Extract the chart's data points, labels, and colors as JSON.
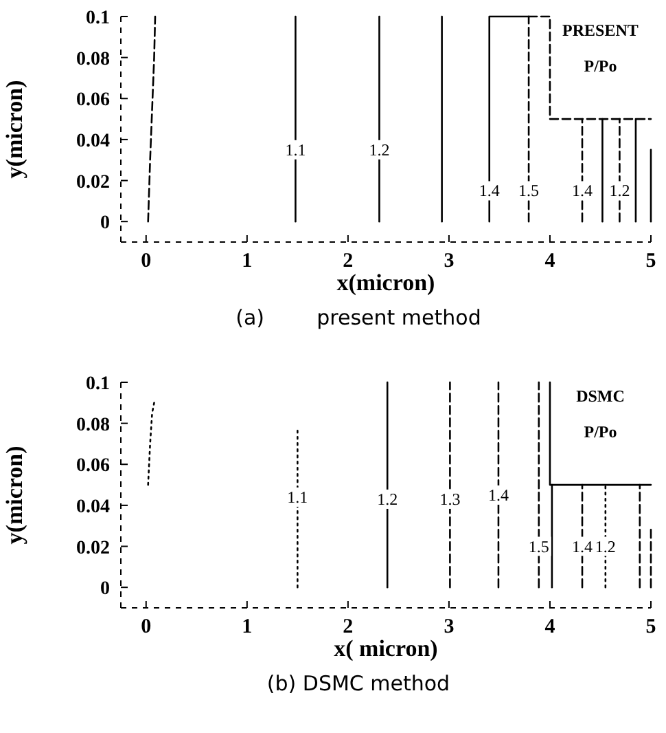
{
  "chart_data": [
    {
      "type": "line",
      "title": "(a)        present method",
      "xlabel": "x(micron)",
      "ylabel": "y(micron)",
      "xlim": [
        -0.25,
        5
      ],
      "ylim": [
        -0.01,
        0.1
      ],
      "xticks": [
        0,
        1,
        2,
        3,
        4,
        5
      ],
      "yticks": [
        0,
        0.02,
        0.04,
        0.06,
        0.08,
        0.1
      ],
      "grid": false,
      "line_style": "solid",
      "series": [
        {
          "color": "#000000",
          "line_style": "dashed",
          "x": [
            0.02,
            0.04,
            0.06,
            0.08,
            0.09
          ],
          "values": [
            0,
            0.03,
            0.055,
            0.08,
            0.1
          ]
        },
        {
          "color": "#000000",
          "x": [
            1.48,
            1.48
          ],
          "values": [
            0,
            0.1
          ]
        },
        {
          "color": "#000000",
          "x": [
            2.31,
            2.31
          ],
          "values": [
            0,
            0.1
          ]
        },
        {
          "color": "#000000",
          "x": [
            2.93,
            2.93
          ],
          "values": [
            0,
            0.1
          ]
        },
        {
          "color": "#000000",
          "x": [
            3.4,
            3.4,
            3.79
          ],
          "values": [
            0,
            0.1,
            0.1
          ]
        },
        {
          "color": "#000000",
          "line_style": "dashed",
          "x": [
            3.79,
            3.79
          ],
          "values": [
            0,
            0.1
          ]
        },
        {
          "color": "#000000",
          "line_style": "dashed",
          "x": [
            3.79,
            4,
            4,
            5
          ],
          "values": [
            0.1,
            0.1,
            0.05,
            0.05
          ]
        },
        {
          "color": "#000000",
          "line_style": "dashed",
          "x": [
            4.32,
            4.32
          ],
          "values": [
            0,
            0.05
          ]
        },
        {
          "color": "#000000",
          "x": [
            4.52,
            4.52
          ],
          "values": [
            0,
            0.05
          ]
        },
        {
          "color": "#000000",
          "line_style": "dashed",
          "x": [
            4.69,
            4.69
          ],
          "values": [
            0,
            0.05
          ]
        },
        {
          "color": "#000000",
          "x": [
            4.85,
            4.85
          ],
          "values": [
            0,
            0.05
          ]
        },
        {
          "color": "#000000",
          "x": [
            5,
            5
          ],
          "values": [
            0,
            0.035
          ]
        }
      ],
      "annotations": [
        "PRESENT",
        "P/Po",
        {
          "text": "1.1",
          "x": 1.48,
          "y": 0.035
        },
        {
          "text": "1.2",
          "x": 2.31,
          "y": 0.035
        },
        {
          "text": "1.4",
          "x": 3.4,
          "y": 0.015
        },
        {
          "text": "1.5",
          "x": 3.79,
          "y": 0.015
        },
        {
          "text": "1.4",
          "x": 4.32,
          "y": 0.015
        },
        {
          "text": "1.2",
          "x": 4.69,
          "y": 0.015
        }
      ]
    },
    {
      "type": "line",
      "title": "(b) DSMC method",
      "xlabel": "x( micron)",
      "ylabel": "y(micron)",
      "xlim": [
        -0.25,
        5
      ],
      "ylim": [
        -0.01,
        0.1
      ],
      "xticks": [
        0,
        1,
        2,
        3,
        4,
        5
      ],
      "yticks": [
        0,
        0.02,
        0.04,
        0.06,
        0.08,
        0.1
      ],
      "grid": false,
      "line_style": "solid",
      "series": [
        {
          "color": "#000000",
          "line_style": "dotted",
          "x": [
            0.02,
            0.04,
            0.06,
            0.08
          ],
          "values": [
            0.05,
            0.07,
            0.085,
            0.09
          ]
        },
        {
          "color": "#000000",
          "line_style": "dotted",
          "x": [
            1.5,
            1.5
          ],
          "values": [
            0,
            0.078
          ]
        },
        {
          "color": "#000000",
          "x": [
            2.39,
            2.39
          ],
          "values": [
            0,
            0.1
          ]
        },
        {
          "color": "#000000",
          "line_style": "dashed",
          "x": [
            3.01,
            3.01
          ],
          "values": [
            0,
            0.1
          ]
        },
        {
          "color": "#000000",
          "line_style": "dashed",
          "x": [
            3.49,
            3.49
          ],
          "values": [
            0,
            0.1
          ]
        },
        {
          "color": "#000000",
          "line_style": "dashed",
          "x": [
            3.89,
            3.89
          ],
          "values": [
            0,
            0.1
          ]
        },
        {
          "color": "#000000",
          "x": [
            4,
            4,
            5
          ],
          "values": [
            0.1,
            0.05,
            0.05
          ]
        },
        {
          "color": "#000000",
          "x": [
            4.02,
            4.02
          ],
          "values": [
            0,
            0.05
          ]
        },
        {
          "color": "#000000",
          "line_style": "dashed",
          "x": [
            4.32,
            4.32
          ],
          "values": [
            0,
            0.05
          ]
        },
        {
          "color": "#000000",
          "line_style": "dotted",
          "x": [
            4.55,
            4.55
          ],
          "values": [
            0,
            0.05
          ]
        },
        {
          "color": "#000000",
          "line_style": "dashed",
          "x": [
            4.89,
            4.89
          ],
          "values": [
            0,
            0.05
          ]
        },
        {
          "color": "#000000",
          "line_style": "dashed",
          "x": [
            5,
            5
          ],
          "values": [
            0,
            0.03
          ]
        }
      ],
      "annotations": [
        "DSMC",
        "P/Po",
        {
          "text": "1.1",
          "x": 1.5,
          "y": 0.044
        },
        {
          "text": "1.2",
          "x": 2.39,
          "y": 0.043
        },
        {
          "text": "1.3",
          "x": 3.01,
          "y": 0.043
        },
        {
          "text": "1.4",
          "x": 3.49,
          "y": 0.045
        },
        {
          "text": "1.5",
          "x": 3.89,
          "y": 0.02
        },
        {
          "text": "1.4",
          "x": 4.32,
          "y": 0.02
        },
        {
          "text": "1.2",
          "x": 4.55,
          "y": 0.02
        }
      ]
    }
  ]
}
